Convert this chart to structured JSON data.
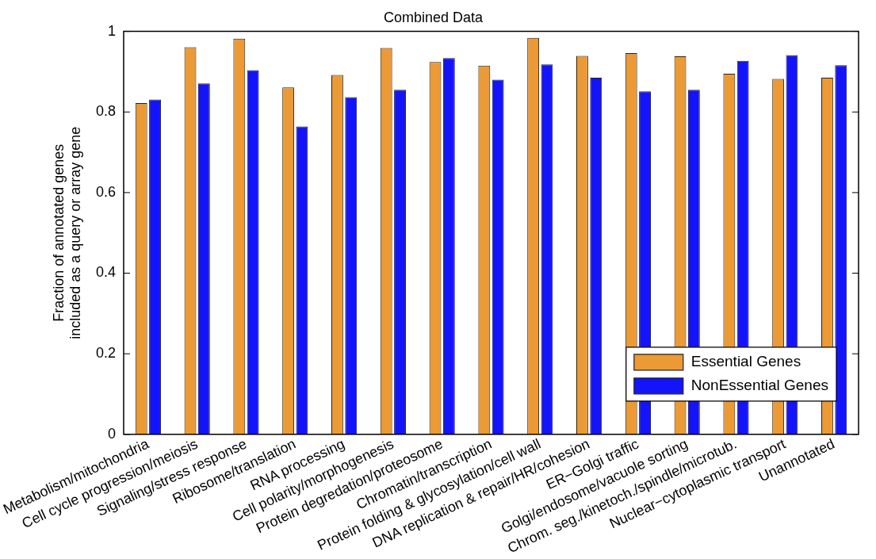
{
  "chart_data": {
    "type": "bar",
    "title": "Combined Data",
    "ylabel": "Fraction of annotated genes\nincluded as a query or array gene",
    "categories": [
      "Metabolism/mitochondria",
      "Cell cycle progression/meiosis",
      "Signaling/stress response",
      "Ribosome/translation",
      "RNA processing",
      "Cell polarity/morphogenesis",
      "Protein degredation/proteosome",
      "Chromatin/transcription",
      "Protein folding & glycosylation/cell wall",
      "DNA replication & repair/HR/cohesion",
      "ER−Golgi traffic",
      "Golgi/endosome/vacuole sorting",
      "Chrom. seg./kinetoch./spindle/microtub.",
      "Nuclear−cytoplasmic transport",
      "Unannotated"
    ],
    "series": [
      {
        "name": "Essential Genes",
        "color": "#eb9a35",
        "values": [
          0.822,
          0.961,
          0.982,
          0.861,
          0.892,
          0.959,
          0.924,
          0.915,
          0.984,
          0.939,
          0.946,
          0.938,
          0.895,
          0.882,
          0.885
        ]
      },
      {
        "name": "NonEssential Genes",
        "color": "#1414fa",
        "values": [
          0.831,
          0.871,
          0.904,
          0.764,
          0.837,
          0.855,
          0.934,
          0.88,
          0.918,
          0.885,
          0.851,
          0.855,
          0.927,
          0.941,
          0.916
        ]
      }
    ],
    "ylim": [
      0,
      1
    ],
    "yticks": [
      0,
      0.2,
      0.4,
      0.6,
      0.8,
      1
    ],
    "grid": false,
    "legend": "bottom right"
  }
}
